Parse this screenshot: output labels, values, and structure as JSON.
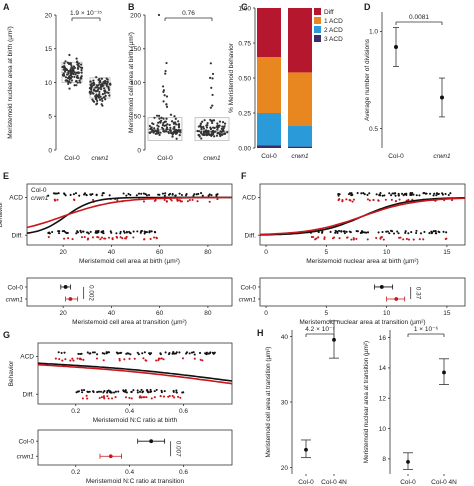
{
  "panel_labels": {
    "A": "A",
    "B": "B",
    "C": "C",
    "D": "D",
    "E": "E",
    "F": "F",
    "G": "G",
    "H": "H"
  },
  "colors": {
    "col0": "#111111",
    "crwn1": "#c8171c",
    "diff": "#b5172f",
    "acd1": "#e8861f",
    "acd2": "#2a9ad8",
    "acd3": "#3b2d6a"
  },
  "chart_data": [
    {
      "panel": "A",
      "type": "scatter",
      "ylabel": "Meristemoid nuclear area at birth (µm²)",
      "categories": [
        "Col-0",
        "crwn1"
      ],
      "ylim": [
        0,
        20
      ],
      "yticks": [
        0,
        5,
        10,
        15,
        20
      ],
      "medians": [
        11.5,
        9.2
      ],
      "spreads": [
        2.0,
        2.0
      ],
      "annotation": "1.9 × 10⁻¹⁵"
    },
    {
      "panel": "B",
      "type": "scatter",
      "ylabel": "Meristemoid cell area at birth (µm²)",
      "categories": [
        "Col-0",
        "crwn1"
      ],
      "ylim": [
        0,
        200
      ],
      "yticks": [
        0,
        50,
        100,
        150,
        200
      ],
      "medians": [
        30,
        28
      ],
      "spreads": [
        20,
        18
      ],
      "annotation": "0.76"
    },
    {
      "panel": "C",
      "type": "bar",
      "stacked": true,
      "ylabel": "% Meristemoid behavior",
      "categories": [
        "Col-0",
        "crwn1"
      ],
      "ylim": [
        0,
        1
      ],
      "yticks": [
        "0.00",
        "0.25",
        "0.50",
        "0.75",
        "1.00"
      ],
      "series": [
        {
          "name": "3 ACD",
          "values": [
            0.02,
            0.01
          ]
        },
        {
          "name": "2 ACD",
          "values": [
            0.23,
            0.15
          ]
        },
        {
          "name": "1 ACD",
          "values": [
            0.4,
            0.38
          ]
        },
        {
          "name": "Diff",
          "values": [
            0.35,
            0.46
          ]
        }
      ],
      "legend": [
        "Diff",
        "1 ACD",
        "2 ACD",
        "3 ACD"
      ],
      "legend_position": "right"
    },
    {
      "panel": "D",
      "type": "scatter",
      "ylabel": "Average number of divisions",
      "categories": [
        "Col-0",
        "crwn1"
      ],
      "ylim": [
        0.4,
        1.1
      ],
      "yticks": [
        "0.5",
        "1.0"
      ],
      "means": [
        0.92,
        0.66
      ],
      "err_low": [
        0.82,
        0.56
      ],
      "err_high": [
        1.02,
        0.76
      ],
      "annotation": "0.0081"
    },
    {
      "panel": "E",
      "type": "line",
      "xlabel": "Meristemoid cell area at birth (µm²)",
      "ylabel": "Behavior",
      "xlim": [
        5,
        90
      ],
      "xticks": [
        20,
        40,
        60,
        80
      ],
      "ycat": [
        "ACD",
        "Diff."
      ],
      "legend": [
        "Col-0",
        "crwn1"
      ],
      "curves": [
        {
          "name": "Col-0",
          "mid": 21,
          "k": 0.18,
          "floor": 0.0
        },
        {
          "name": "crwn1",
          "mid": 20,
          "k": 0.09,
          "floor": 0.0
        }
      ],
      "points_acd": [
        13,
        85
      ],
      "points_diff": [
        13,
        60
      ]
    },
    {
      "panel": "E2",
      "type": "scatter",
      "xlabel": "Meristemoid cell area at transition (µm²)",
      "categories": [
        "Col-0",
        "crwn1"
      ],
      "xlim": [
        5,
        90
      ],
      "xticks": [
        20,
        40,
        60,
        80
      ],
      "means": [
        21,
        23
      ],
      "err": [
        [
          19,
          23
        ],
        [
          21,
          26
        ]
      ],
      "annotation": "0.002"
    },
    {
      "panel": "F",
      "type": "line",
      "xlabel": "Meristemoid nuclear area at birth (µm²)",
      "ylabel": "",
      "xlim": [
        -0.5,
        16.5
      ],
      "xticks": [
        0,
        5,
        10,
        15
      ],
      "ycat": [
        "ACD",
        "Diff."
      ],
      "curves": [
        {
          "name": "Col-0",
          "mid": 8,
          "k": 0.55,
          "floor": 0.0
        },
        {
          "name": "crwn1",
          "mid": 8,
          "k": 0.45,
          "floor": 0.0
        }
      ],
      "points_acd": [
        5.5,
        15.5
      ],
      "points_diff": [
        3,
        15
      ]
    },
    {
      "panel": "F2",
      "type": "scatter",
      "xlabel": "Meristemoid nuclear area at transition (µm²)",
      "categories": [
        "Col-0",
        "crwn1"
      ],
      "xlim": [
        -0.5,
        16.5
      ],
      "xticks": [
        0,
        5,
        10,
        15
      ],
      "means": [
        9.6,
        10.8
      ],
      "err": [
        [
          9.0,
          10.5
        ],
        [
          10.0,
          11.5
        ]
      ],
      "annotation": "0.37"
    },
    {
      "panel": "G",
      "type": "line",
      "xlabel": "Meristemoid N:C ratio at birth",
      "ylabel": "Behavior",
      "xlim": [
        0.06,
        0.78
      ],
      "xticks": [
        "0.2",
        "0.4",
        "0.6"
      ],
      "ycat": [
        "ACD",
        "Diff."
      ],
      "curves": [
        {
          "name": "Col-0",
          "x0": 0.06,
          "x1": 0.78,
          "y0": 0.82,
          "y1": 0.35
        },
        {
          "name": "crwn1",
          "x0": 0.06,
          "x1": 0.78,
          "y0": 0.78,
          "y1": 0.28
        }
      ],
      "points_acd": [
        0.12,
        0.72
      ],
      "points_diff": [
        0.2,
        0.6
      ]
    },
    {
      "panel": "G2",
      "type": "scatter",
      "xlabel": "Meristemoid N:C ratio at transition",
      "categories": [
        "Col-0",
        "crwn1"
      ],
      "xlim": [
        0.06,
        0.78
      ],
      "xticks": [
        "0.2",
        "0.4",
        "0.6"
      ],
      "means": [
        0.48,
        0.33
      ],
      "err": [
        [
          0.43,
          0.53
        ],
        [
          0.29,
          0.37
        ]
      ],
      "annotation": "0.007"
    },
    {
      "panel": "H1",
      "type": "scatter",
      "ylabel": "Meristemoid cell area at transition (µm²)",
      "categories": [
        "Col-0",
        "Col-0 4N"
      ],
      "ylim": [
        19,
        41
      ],
      "yticks": [
        "20",
        "30",
        "40"
      ],
      "means": [
        22.7,
        39.5
      ],
      "err": [
        [
          21.5,
          24.2
        ],
        [
          36.7,
          42.4
        ]
      ],
      "annotation": "4.2 × 10⁻⁷"
    },
    {
      "panel": "H2",
      "type": "scatter",
      "ylabel": "Meristemoid nuclear area at transition (µm²)",
      "categories": [
        "Col-0",
        "Col-0 4N"
      ],
      "ylim": [
        7,
        16.5
      ],
      "yticks": [
        "8",
        "10",
        "12",
        "14",
        "16"
      ],
      "means": [
        7.8,
        13.7
      ],
      "err": [
        [
          7.3,
          8.4
        ],
        [
          12.9,
          14.6
        ]
      ],
      "annotation": "1 × 10⁻⁶"
    }
  ]
}
